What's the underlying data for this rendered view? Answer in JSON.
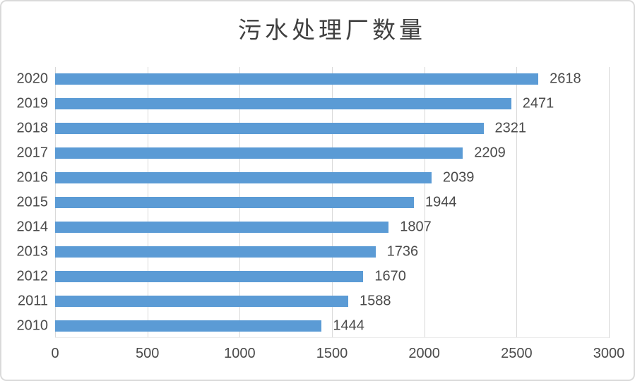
{
  "chart_data": {
    "type": "bar",
    "orientation": "horizontal",
    "title": "污水处理厂数量",
    "categories": [
      "2020",
      "2019",
      "2018",
      "2017",
      "2016",
      "2015",
      "2014",
      "2013",
      "2012",
      "2011",
      "2010"
    ],
    "values": [
      2618,
      2471,
      2321,
      2209,
      2039,
      1944,
      1807,
      1736,
      1670,
      1588,
      1444
    ],
    "x_ticks": [
      "0",
      "500",
      "1000",
      "1500",
      "2000",
      "2500",
      "3000"
    ],
    "xlim": [
      0,
      3000
    ],
    "grid": true,
    "legend": "none",
    "data_labels": true,
    "colors": {
      "bar": "#5B9BD5",
      "gridline": "#D9D9D9",
      "label_text": "#4a4a4a",
      "title_text": "#3f3f3f",
      "frame_border": "#DADADA",
      "background": "#ffffff"
    }
  }
}
